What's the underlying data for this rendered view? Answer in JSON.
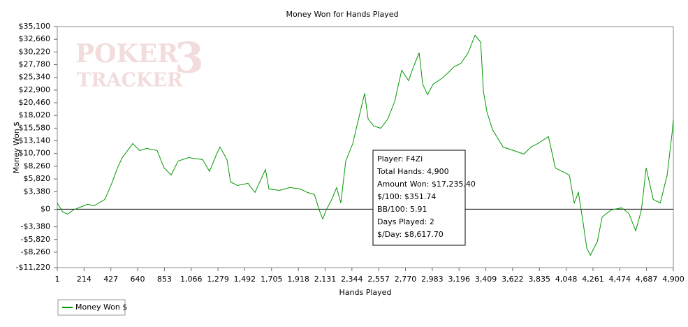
{
  "chart_data": {
    "type": "line",
    "title": "Money Won for Hands Played",
    "x_label": "Hands Played",
    "y_label": "Money Won $",
    "watermark": [
      "POKER",
      "TRACKER",
      "3"
    ],
    "tooltip": [
      "Player: F4Zi",
      "Total Hands: 4,900",
      "Amount Won: $17,235.40",
      "$/100: $351.74",
      "BB/100: 5.91",
      "Days Played: 2",
      "$/Day: $8,617.70"
    ],
    "legend": "bottom-left",
    "grid": false,
    "xlim": [
      1,
      4900
    ],
    "xticks": [
      1,
      214,
      427,
      640,
      853,
      {
        "value": 1066,
        "label": "1,066"
      },
      {
        "value": 1279,
        "label": "1,279"
      },
      {
        "value": 1492,
        "label": "1,492"
      },
      {
        "value": 1705,
        "label": "1,705"
      },
      {
        "value": 1918,
        "label": "1,918"
      },
      {
        "value": 2131,
        "label": "2,131"
      },
      {
        "value": 2344,
        "label": "2,344"
      },
      {
        "value": 2557,
        "label": "2,557"
      },
      {
        "value": 2770,
        "label": "2,770"
      },
      {
        "value": 2983,
        "label": "2,983"
      },
      {
        "value": 3196,
        "label": "3,196"
      },
      {
        "value": 3409,
        "label": "3,409"
      },
      {
        "value": 3622,
        "label": "3,622"
      },
      {
        "value": 3835,
        "label": "3,835"
      },
      {
        "value": 4048,
        "label": "4,048"
      },
      {
        "value": 4261,
        "label": "4,261"
      },
      {
        "value": 4474,
        "label": "4,474"
      },
      {
        "value": 4687,
        "label": "4,687"
      },
      {
        "value": 4900,
        "label": "4,900"
      }
    ],
    "ylim": [
      -11220,
      35100
    ],
    "yticks": [
      {
        "value": -11220,
        "label": "-$11,220"
      },
      {
        "value": -8260,
        "label": "-$8,260"
      },
      {
        "value": -5820,
        "label": "-$5,820"
      },
      {
        "value": -3380,
        "label": "-$3,380"
      },
      {
        "value": 0,
        "label": "$0"
      },
      {
        "value": 3380,
        "label": "$3,380"
      },
      {
        "value": 5820,
        "label": "$5,820"
      },
      {
        "value": 8260,
        "label": "$8,260"
      },
      {
        "value": 10700,
        "label": "$10,700"
      },
      {
        "value": 13140,
        "label": "$13,140"
      },
      {
        "value": 15580,
        "label": "$15,580"
      },
      {
        "value": 18020,
        "label": "$18,020"
      },
      {
        "value": 20460,
        "label": "$20,460"
      },
      {
        "value": 22900,
        "label": "$22,900"
      },
      {
        "value": 25340,
        "label": "$25,340"
      },
      {
        "value": 27780,
        "label": "$27,780"
      },
      {
        "value": 30220,
        "label": "$30,220"
      },
      {
        "value": 32660,
        "label": "$32,660"
      },
      {
        "value": 35100,
        "label": "$35,100"
      }
    ],
    "x": [
      1,
      45,
      84,
      129,
      184,
      240,
      295,
      379,
      434,
      479,
      518,
      573,
      601,
      656,
      712,
      795,
      851,
      907,
      962,
      1045,
      1157,
      1212,
      1268,
      1295,
      1351,
      1379,
      1434,
      1518,
      1573,
      1657,
      1684,
      1768,
      1851,
      1934,
      1990,
      2046,
      2084,
      2112,
      2140,
      2184,
      2223,
      2256,
      2295,
      2351,
      2390,
      2423,
      2445,
      2473,
      2518,
      2573,
      2629,
      2684,
      2740,
      2795,
      2834,
      2879,
      2907,
      2945,
      2990,
      3057,
      3101,
      3157,
      3212,
      3268,
      3323,
      3368,
      3390,
      3418,
      3462,
      3546,
      3629,
      3712,
      3768,
      3823,
      3907,
      3962,
      4018,
      4073,
      4112,
      4145,
      4184,
      4212,
      4240,
      4296,
      4334,
      4407,
      4490,
      4546,
      4601,
      4646,
      4684,
      4740,
      4796,
      4851,
      4890,
      4900
    ],
    "series": [
      {
        "name": "Money Won $",
        "color": "#009900",
        "values": [
          1200,
          -540,
          -940,
          -130,
          400,
          940,
          670,
          1880,
          4970,
          7920,
          9930,
          11680,
          12620,
          11280,
          11680,
          11280,
          7920,
          6580,
          9260,
          9930,
          9530,
          7250,
          10600,
          11950,
          9530,
          5230,
          4560,
          4970,
          3220,
          7650,
          3890,
          3620,
          4160,
          3890,
          3220,
          2820,
          -130,
          -1880,
          -130,
          1880,
          4160,
          1200,
          9260,
          12620,
          16640,
          20000,
          22280,
          17320,
          15970,
          15570,
          17320,
          20670,
          26710,
          24700,
          27380,
          30070,
          24030,
          22010,
          24030,
          25100,
          26040,
          27380,
          28050,
          30070,
          33420,
          32080,
          22680,
          18660,
          15300,
          11950,
          11280,
          10600,
          11950,
          12620,
          13960,
          7920,
          7250,
          6580,
          1200,
          3220,
          -2820,
          -7520,
          -8860,
          -6170,
          -1480,
          -130,
          270,
          -810,
          -4160,
          -130,
          7920,
          1880,
          1200,
          6580,
          14630,
          17235
        ]
      }
    ]
  }
}
